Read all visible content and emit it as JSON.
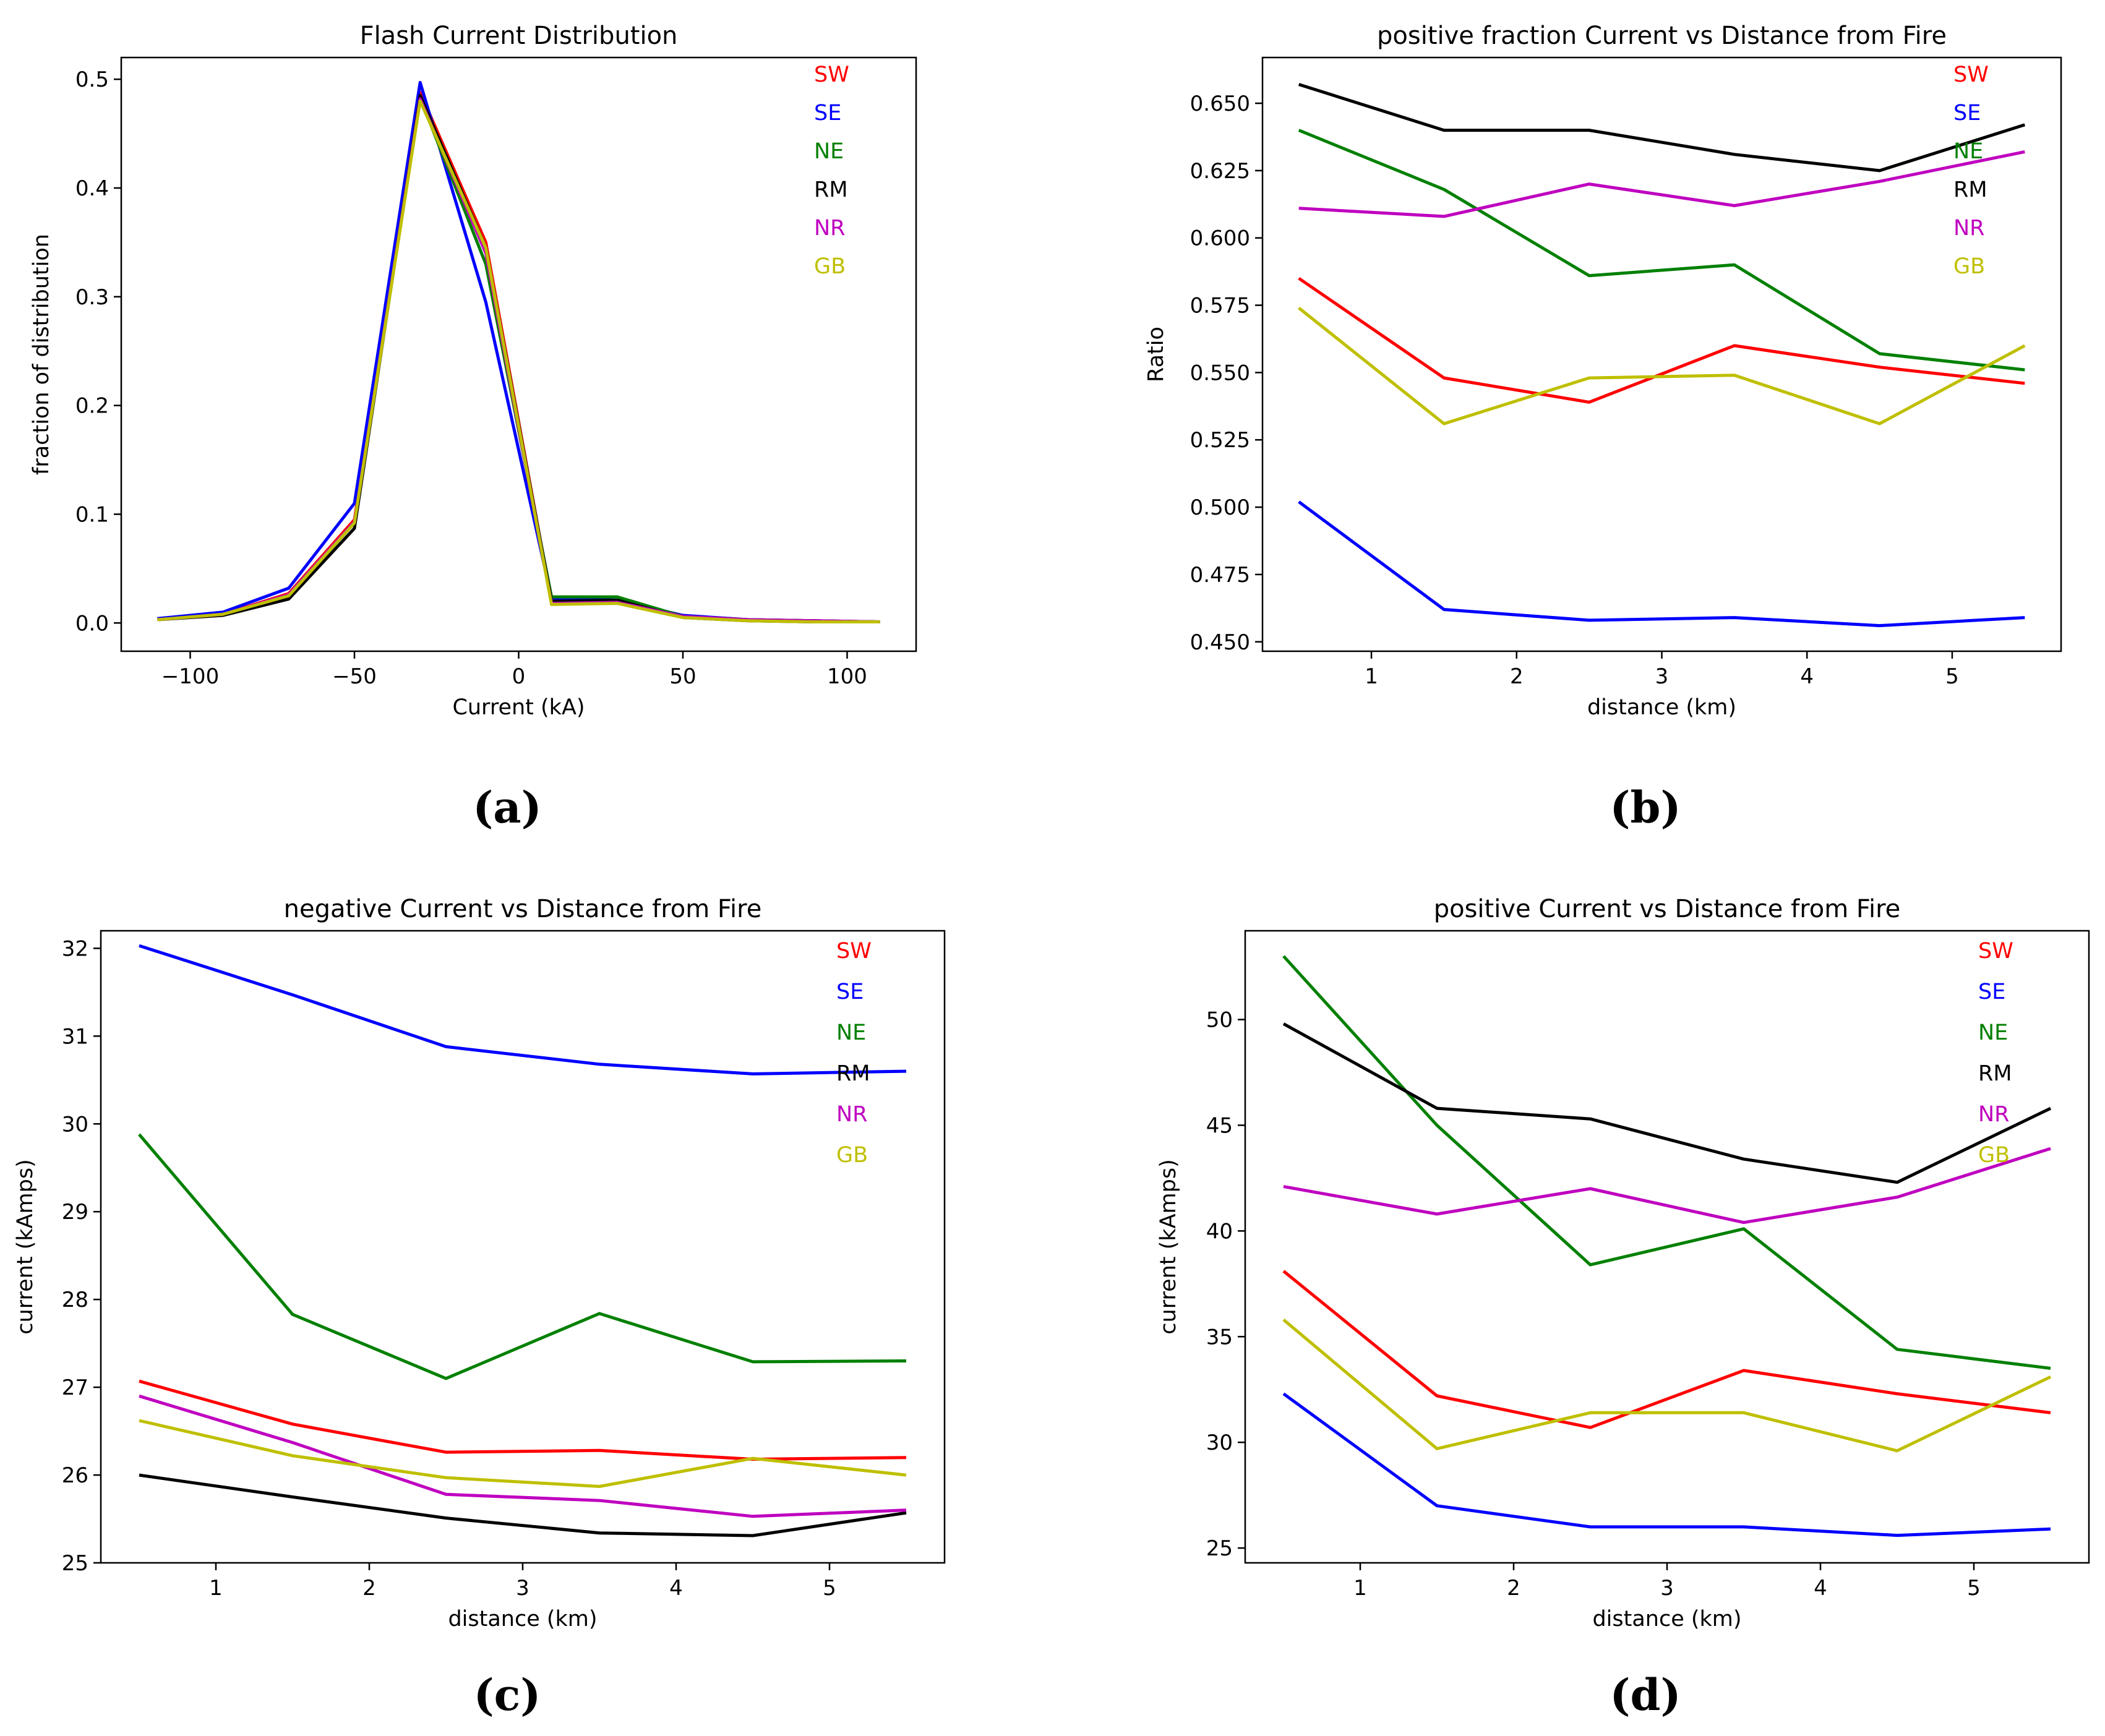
{
  "colors": {
    "SW": "#ff0000",
    "SE": "#0000ff",
    "NE": "#008000",
    "RM": "#000000",
    "NR": "#bf00bf",
    "GB": "#bfbf00"
  },
  "chart_data": [
    {
      "id": "a",
      "panel_label": "(a)",
      "type": "line",
      "title": "Flash Current Distribution",
      "xlabel": "Current (kA)",
      "ylabel": "fraction of distribution",
      "xlim": [
        -121,
        121
      ],
      "ylim": [
        -0.026,
        0.52
      ],
      "xticks": [
        -100,
        -50,
        0,
        50,
        100
      ],
      "xtick_labels": [
        "−100",
        "−50",
        "0",
        "50",
        "100"
      ],
      "yticks": [
        0.0,
        0.1,
        0.2,
        0.3,
        0.4,
        0.5
      ],
      "ytick_labels": [
        "0.0",
        "0.1",
        "0.2",
        "0.3",
        "0.4",
        "0.5"
      ],
      "legend": [
        "SW",
        "SE",
        "NE",
        "RM",
        "NR",
        "GB"
      ],
      "x": [
        -110,
        -90,
        -70,
        -50,
        -30,
        -10,
        10,
        30,
        50,
        70,
        90,
        110
      ],
      "series": [
        {
          "name": "SW",
          "values": [
            0.003,
            0.008,
            0.027,
            0.095,
            0.488,
            0.35,
            0.02,
            0.02,
            0.006,
            0.003,
            0.002,
            0.001
          ]
        },
        {
          "name": "SE",
          "values": [
            0.004,
            0.01,
            0.032,
            0.11,
            0.497,
            0.295,
            0.023,
            0.021,
            0.007,
            0.003,
            0.002,
            0.001
          ]
        },
        {
          "name": "NE",
          "values": [
            0.003,
            0.008,
            0.025,
            0.092,
            0.483,
            0.33,
            0.024,
            0.024,
            0.006,
            0.003,
            0.002,
            0.001
          ]
        },
        {
          "name": "RM",
          "values": [
            0.003,
            0.007,
            0.022,
            0.087,
            0.485,
            0.345,
            0.02,
            0.021,
            0.005,
            0.002,
            0.001,
            0.001
          ]
        },
        {
          "name": "NR",
          "values": [
            0.003,
            0.008,
            0.026,
            0.093,
            0.482,
            0.34,
            0.018,
            0.019,
            0.006,
            0.003,
            0.002,
            0.001
          ]
        },
        {
          "name": "GB",
          "values": [
            0.003,
            0.008,
            0.025,
            0.092,
            0.48,
            0.345,
            0.017,
            0.018,
            0.005,
            0.002,
            0.001,
            0.001
          ]
        }
      ]
    },
    {
      "id": "b",
      "panel_label": "(b)",
      "type": "line",
      "title": "positive fraction Current vs Distance from Fire",
      "xlabel": "distance (km)",
      "ylabel": "Ratio",
      "xlim": [
        0.25,
        5.75
      ],
      "ylim": [
        0.4465,
        0.667
      ],
      "xticks": [
        1,
        2,
        3,
        4,
        5
      ],
      "xtick_labels": [
        "1",
        "2",
        "3",
        "4",
        "5"
      ],
      "yticks": [
        0.45,
        0.475,
        0.5,
        0.525,
        0.55,
        0.575,
        0.6,
        0.625,
        0.65
      ],
      "ytick_labels": [
        "0.450",
        "0.475",
        "0.500",
        "0.525",
        "0.550",
        "0.575",
        "0.600",
        "0.625",
        "0.650"
      ],
      "legend": [
        "SW",
        "SE",
        "NE",
        "RM",
        "NR",
        "GB"
      ],
      "x": [
        0.5,
        1.5,
        2.5,
        3.5,
        4.5,
        5.5
      ],
      "series": [
        {
          "name": "SW",
          "values": [
            0.585,
            0.548,
            0.539,
            0.56,
            0.552,
            0.546
          ]
        },
        {
          "name": "SE",
          "values": [
            0.502,
            0.462,
            0.458,
            0.459,
            0.456,
            0.459
          ]
        },
        {
          "name": "NE",
          "values": [
            0.64,
            0.618,
            0.586,
            0.59,
            0.557,
            0.551
          ]
        },
        {
          "name": "RM",
          "values": [
            0.657,
            0.64,
            0.64,
            0.631,
            0.625,
            0.642
          ]
        },
        {
          "name": "NR",
          "values": [
            0.611,
            0.608,
            0.62,
            0.612,
            0.621,
            0.632
          ]
        },
        {
          "name": "GB",
          "values": [
            0.574,
            0.531,
            0.548,
            0.549,
            0.531,
            0.56
          ]
        }
      ]
    },
    {
      "id": "c",
      "panel_label": "(c)",
      "type": "line",
      "title": "negative Current vs Distance from Fire",
      "xlabel": "distance (km)",
      "ylabel": "current (kAmps)",
      "xlim": [
        0.25,
        5.75
      ],
      "ylim": [
        25.0,
        32.2
      ],
      "xticks": [
        1,
        2,
        3,
        4,
        5
      ],
      "xtick_labels": [
        "1",
        "2",
        "3",
        "4",
        "5"
      ],
      "yticks": [
        25,
        26,
        27,
        28,
        29,
        30,
        31,
        32
      ],
      "ytick_labels": [
        "25",
        "26",
        "27",
        "28",
        "29",
        "30",
        "31",
        "32"
      ],
      "legend": [
        "SW",
        "SE",
        "NE",
        "RM",
        "NR",
        "GB"
      ],
      "x": [
        0.5,
        1.5,
        2.5,
        3.5,
        4.5,
        5.5
      ],
      "series": [
        {
          "name": "SW",
          "values": [
            27.07,
            26.58,
            26.26,
            26.28,
            26.18,
            26.2
          ]
        },
        {
          "name": "SE",
          "values": [
            32.03,
            31.47,
            30.88,
            30.68,
            30.57,
            30.6
          ]
        },
        {
          "name": "NE",
          "values": [
            29.88,
            27.83,
            27.1,
            27.84,
            27.29,
            27.3
          ]
        },
        {
          "name": "RM",
          "values": [
            26.0,
            25.75,
            25.51,
            25.34,
            25.31,
            25.57
          ]
        },
        {
          "name": "NR",
          "values": [
            26.9,
            26.37,
            25.78,
            25.71,
            25.53,
            25.6
          ]
        },
        {
          "name": "GB",
          "values": [
            26.62,
            26.22,
            25.97,
            25.87,
            26.19,
            26.0
          ]
        }
      ]
    },
    {
      "id": "d",
      "panel_label": "(d)",
      "type": "line",
      "title": "positive Current vs Distance from Fire",
      "xlabel": "distance (km)",
      "ylabel": "current (kAmps)",
      "xlim": [
        0.25,
        5.75
      ],
      "ylim": [
        24.3,
        54.2
      ],
      "xticks": [
        1,
        2,
        3,
        4,
        5
      ],
      "xtick_labels": [
        "1",
        "2",
        "3",
        "4",
        "5"
      ],
      "yticks": [
        25,
        30,
        35,
        40,
        45,
        50
      ],
      "ytick_labels": [
        "25",
        "30",
        "35",
        "40",
        "45",
        "50"
      ],
      "legend": [
        "SW",
        "SE",
        "NE",
        "RM",
        "NR",
        "GB"
      ],
      "x": [
        0.5,
        1.5,
        2.5,
        3.5,
        4.5,
        5.5
      ],
      "series": [
        {
          "name": "SW",
          "values": [
            38.1,
            32.2,
            30.7,
            33.4,
            32.3,
            31.4
          ]
        },
        {
          "name": "SE",
          "values": [
            32.3,
            27.0,
            26.0,
            26.0,
            25.6,
            25.9
          ]
        },
        {
          "name": "NE",
          "values": [
            53.0,
            45.0,
            38.4,
            40.1,
            34.4,
            33.5
          ]
        },
        {
          "name": "RM",
          "values": [
            49.8,
            45.8,
            45.3,
            43.4,
            42.3,
            45.8
          ]
        },
        {
          "name": "NR",
          "values": [
            42.1,
            40.8,
            42.0,
            40.4,
            41.6,
            43.9
          ]
        },
        {
          "name": "GB",
          "values": [
            35.8,
            29.7,
            31.4,
            31.4,
            29.6,
            33.1
          ]
        }
      ]
    }
  ]
}
